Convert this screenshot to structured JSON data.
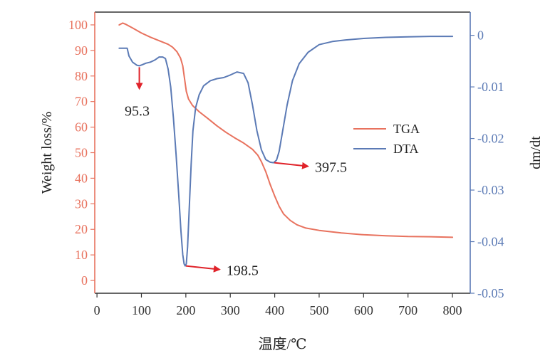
{
  "chart_data": {
    "type": "line",
    "xlabel": "温度/℃",
    "ylabel_left": "Weight loss/%",
    "ylabel_right": "dm/dt",
    "xlim": [
      -5,
      840
    ],
    "ylim_left": [
      -5,
      105
    ],
    "ylim_right": [
      -0.05,
      0.0045
    ],
    "x_ticks": [
      0,
      100,
      200,
      300,
      400,
      500,
      600,
      700,
      800
    ],
    "y_ticks_left": [
      0,
      10,
      20,
      30,
      40,
      50,
      60,
      70,
      80,
      90,
      100
    ],
    "y_ticks_right": [
      {
        "value": 0,
        "label": "0"
      },
      {
        "value": -0.01,
        "label": "-0.01"
      },
      {
        "value": -0.02,
        "label": "-0.02"
      },
      {
        "value": -0.03,
        "label": "-0.03"
      },
      {
        "value": -0.04,
        "label": "-0.04"
      },
      {
        "value": -0.05,
        "label": "-0.05"
      }
    ],
    "grid": false,
    "legend_position": "middle-right",
    "series": [
      {
        "name": "TGA",
        "axis": "left",
        "color": "#E8725E",
        "points": [
          [
            50,
            100
          ],
          [
            58,
            100.7
          ],
          [
            65,
            100.2
          ],
          [
            80,
            98.8
          ],
          [
            100,
            96.8
          ],
          [
            120,
            95.2
          ],
          [
            140,
            93.8
          ],
          [
            160,
            92.4
          ],
          [
            170,
            91.3
          ],
          [
            180,
            89.5
          ],
          [
            188,
            87
          ],
          [
            193,
            84
          ],
          [
            197,
            79
          ],
          [
            201,
            74
          ],
          [
            206,
            71
          ],
          [
            215,
            68.5
          ],
          [
            230,
            66
          ],
          [
            250,
            63.3
          ],
          [
            270,
            60.5
          ],
          [
            290,
            58
          ],
          [
            310,
            55.8
          ],
          [
            330,
            53.8
          ],
          [
            350,
            51.3
          ],
          [
            362,
            49
          ],
          [
            370,
            46.5
          ],
          [
            380,
            42.5
          ],
          [
            390,
            37.5
          ],
          [
            400,
            33
          ],
          [
            410,
            29
          ],
          [
            420,
            26
          ],
          [
            435,
            23.5
          ],
          [
            450,
            21.8
          ],
          [
            470,
            20.5
          ],
          [
            500,
            19.6
          ],
          [
            550,
            18.6
          ],
          [
            600,
            17.9
          ],
          [
            650,
            17.5
          ],
          [
            700,
            17.2
          ],
          [
            750,
            17.1
          ],
          [
            800,
            16.9
          ]
        ]
      },
      {
        "name": "DTA",
        "axis": "right",
        "color": "#5B7AB5",
        "points": [
          [
            50,
            -0.0025
          ],
          [
            68,
            -0.0025
          ],
          [
            72,
            -0.004
          ],
          [
            80,
            -0.0052
          ],
          [
            90,
            -0.0058
          ],
          [
            95.3,
            -0.0059
          ],
          [
            102,
            -0.0057
          ],
          [
            110,
            -0.0054
          ],
          [
            120,
            -0.0052
          ],
          [
            130,
            -0.0048
          ],
          [
            140,
            -0.0042
          ],
          [
            148,
            -0.0042
          ],
          [
            154,
            -0.0045
          ],
          [
            160,
            -0.0065
          ],
          [
            166,
            -0.01
          ],
          [
            172,
            -0.016
          ],
          [
            178,
            -0.023
          ],
          [
            184,
            -0.031
          ],
          [
            189,
            -0.038
          ],
          [
            193,
            -0.0425
          ],
          [
            196,
            -0.0443
          ],
          [
            198.5,
            -0.0447
          ],
          [
            201,
            -0.0443
          ],
          [
            204,
            -0.041
          ],
          [
            208,
            -0.033
          ],
          [
            212,
            -0.025
          ],
          [
            216,
            -0.0185
          ],
          [
            222,
            -0.014
          ],
          [
            230,
            -0.0115
          ],
          [
            240,
            -0.0098
          ],
          [
            255,
            -0.0088
          ],
          [
            270,
            -0.0084
          ],
          [
            285,
            -0.0082
          ],
          [
            300,
            -0.0077
          ],
          [
            315,
            -0.0071
          ],
          [
            330,
            -0.0074
          ],
          [
            340,
            -0.0092
          ],
          [
            350,
            -0.0135
          ],
          [
            360,
            -0.0185
          ],
          [
            370,
            -0.0222
          ],
          [
            380,
            -0.0241
          ],
          [
            390,
            -0.0246
          ],
          [
            397.5,
            -0.0247
          ],
          [
            404,
            -0.0242
          ],
          [
            410,
            -0.0225
          ],
          [
            418,
            -0.0185
          ],
          [
            428,
            -0.0135
          ],
          [
            440,
            -0.0088
          ],
          [
            455,
            -0.0055
          ],
          [
            475,
            -0.0033
          ],
          [
            500,
            -0.0018
          ],
          [
            530,
            -0.0012
          ],
          [
            560,
            -0.0009
          ],
          [
            600,
            -0.0006
          ],
          [
            650,
            -0.0004
          ],
          [
            700,
            -0.0003
          ],
          [
            750,
            -0.0002
          ],
          [
            800,
            -0.0002
          ]
        ]
      }
    ],
    "annotations": [
      {
        "text": "95.3",
        "x": 95.3,
        "y": -0.0059,
        "axis": "right",
        "arrow": "down"
      },
      {
        "text": "198.5",
        "x": 198.5,
        "y": -0.0447,
        "axis": "right",
        "arrow": "right"
      },
      {
        "text": "397.5",
        "x": 397.5,
        "y": -0.0247,
        "axis": "right",
        "arrow": "right"
      }
    ],
    "arrow_color": "#E0232A",
    "left_axis_color": "#E8725E",
    "right_axis_color": "#5B7AB5",
    "x_axis_color": "#333333"
  }
}
